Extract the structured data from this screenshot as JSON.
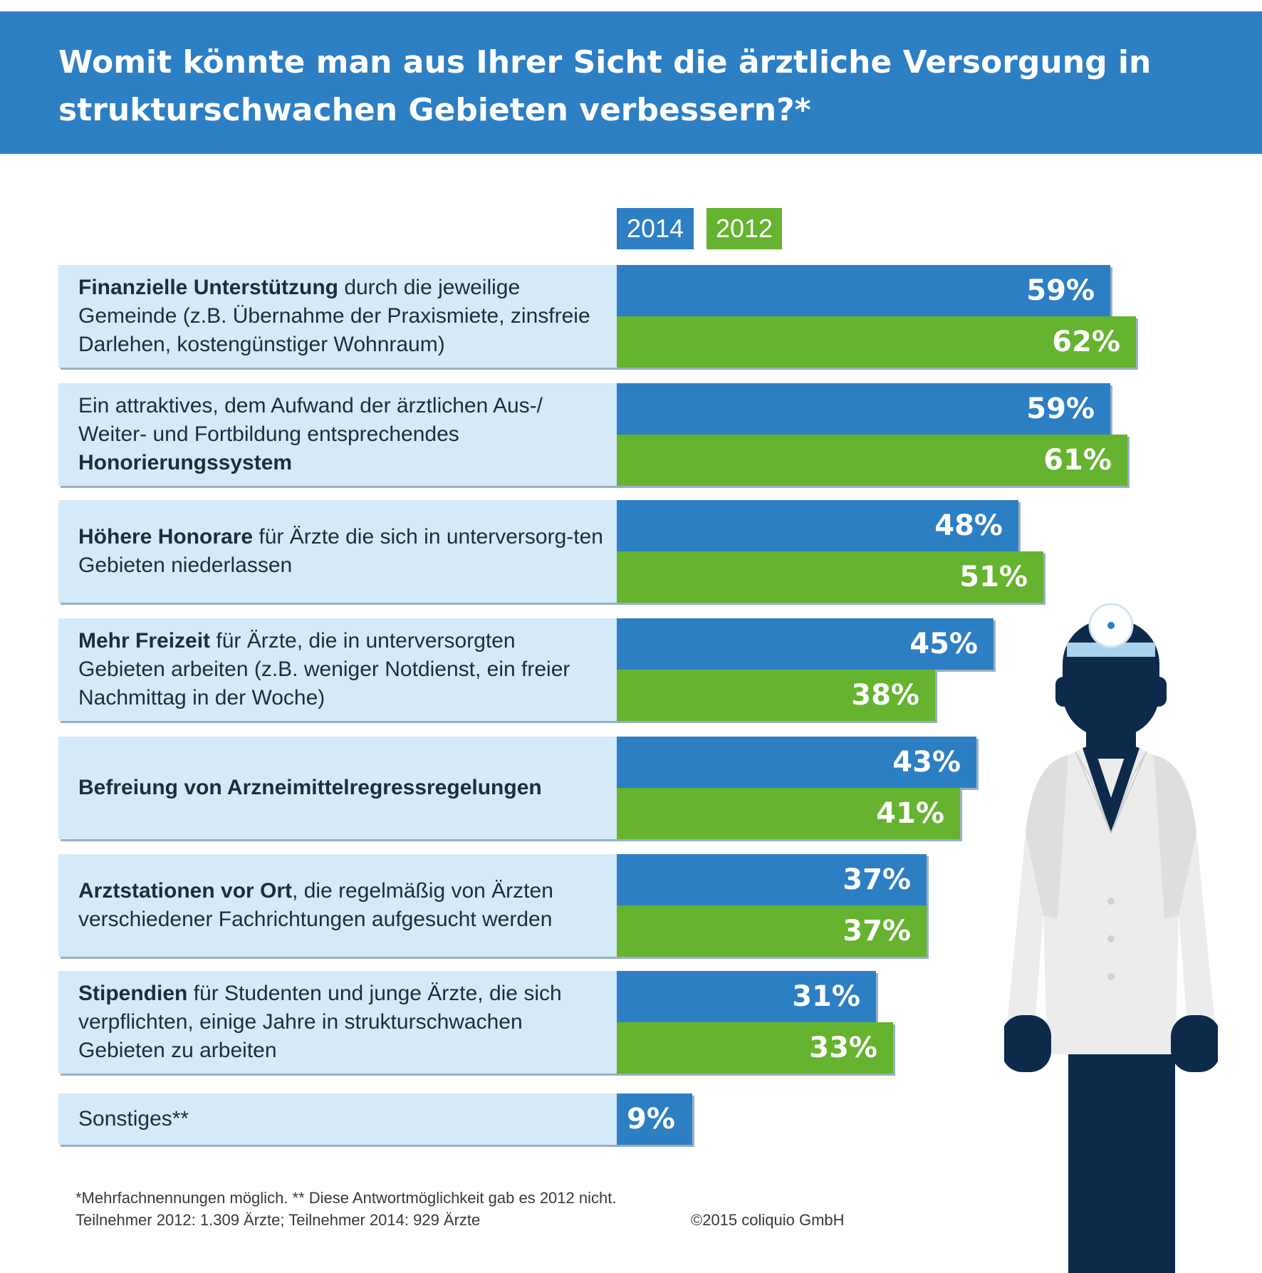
{
  "title": "Womit könnte man aus Ihrer Sicht die ärztliche Versorgung in strukturschwachen Gebieten verbessern?*",
  "legend": {
    "year_2014": "2014",
    "year_2012": "2012"
  },
  "colors": {
    "header": "#2d7fc4",
    "series_2014": "#2d7fc4",
    "series_2012": "#65b32e",
    "label_bg": "#d4eaf8",
    "doctor_dark": "#0d2a4b"
  },
  "chart_data": {
    "type": "bar",
    "orientation": "horizontal",
    "categories": [
      "Finanzielle Unterstützung durch die jeweilige Gemeinde (z.B. Übernahme der Praxismiete, zinsfreie Darlehen, kostengünstiger Wohnraum)",
      "Ein attraktives, dem Aufwand der ärztlichen Aus-/ Weiter- und Fortbildung entsprechendes Honorierungssystem",
      "Höhere Honorare für Ärzte die sich in unterversorg-ten Gebieten niederlassen",
      "Mehr Freizeit für Ärzte, die in unterversorgten Gebieten arbeiten (z.B. weniger Notdienst, ein freier Nachmittag in der Woche)",
      "Befreiung von Arzneimittelregressregelungen",
      "Arztstationen vor Ort, die regelmäßig von Ärzten verschiedener Fachrichtungen aufgesucht werden",
      "Stipendien für Studenten und junge Ärzte, die sich verpflichten, einige Jahre in strukturschwachen Gebieten zu arbeiten",
      "Sonstiges**"
    ],
    "series": [
      {
        "name": "2014",
        "values": [
          59,
          59,
          48,
          45,
          43,
          37,
          31,
          9
        ],
        "labels": [
          "59%",
          "59%",
          "48%",
          "45%",
          "43%",
          "37%",
          "31%",
          "9%"
        ]
      },
      {
        "name": "2012",
        "values": [
          62,
          61,
          51,
          38,
          41,
          37,
          33,
          null
        ],
        "labels": [
          "62%",
          "61%",
          "51%",
          "38%",
          "41%",
          "37%",
          "33%",
          ""
        ]
      }
    ],
    "unit": "%",
    "grid": false,
    "legend_position": "top"
  },
  "rows": [
    {
      "bold": "Finanzielle Unterstützung",
      "before": "",
      "rest": " durch die jeweilige Gemeinde (z.B. Übernahme der Praxismiete, zinsfreie Darlehen, kostengünstiger Wohnraum)"
    },
    {
      "bold": "Honorierungssystem",
      "before": "Ein attraktives, dem Aufwand der ärztlichen Aus-/ Weiter- und Fortbildung entsprechendes ",
      "rest": ""
    },
    {
      "bold": "Höhere Honorare",
      "before": "",
      "rest": " für Ärzte die sich in unterversorg-ten Gebieten niederlassen"
    },
    {
      "bold": "Mehr Freizeit",
      "before": "",
      "rest": " für Ärzte, die in unterversorgten Gebieten arbeiten (z.B. weniger Notdienst, ein freier Nachmittag in der Woche)"
    },
    {
      "bold": "Befreiung von Arzneimittelregressregelungen",
      "before": "",
      "rest": ""
    },
    {
      "bold": "Arztstationen vor Ort",
      "before": "",
      "rest": ", die regelmäßig von Ärzten verschiedener Fachrichtungen aufgesucht werden"
    },
    {
      "bold": "Stipendien",
      "before": "",
      "rest": " für Studenten und junge Ärzte, die sich verpflichten, einige Jahre in strukturschwachen Gebieten zu arbeiten"
    },
    {
      "bold": "",
      "before": "Sonstiges**",
      "rest": ""
    }
  ],
  "footnote": {
    "line1": "*Mehrfachnennungen möglich.  ** Diese Antwortmöglichkeit gab es 2012 nicht.",
    "line2": "Teilnehmer 2012: 1.309 Ärzte; Teilnehmer 2014: 929 Ärzte"
  },
  "copyright": "©2015 coliquio GmbH",
  "illustration": {
    "icon": "doctor-icon"
  }
}
